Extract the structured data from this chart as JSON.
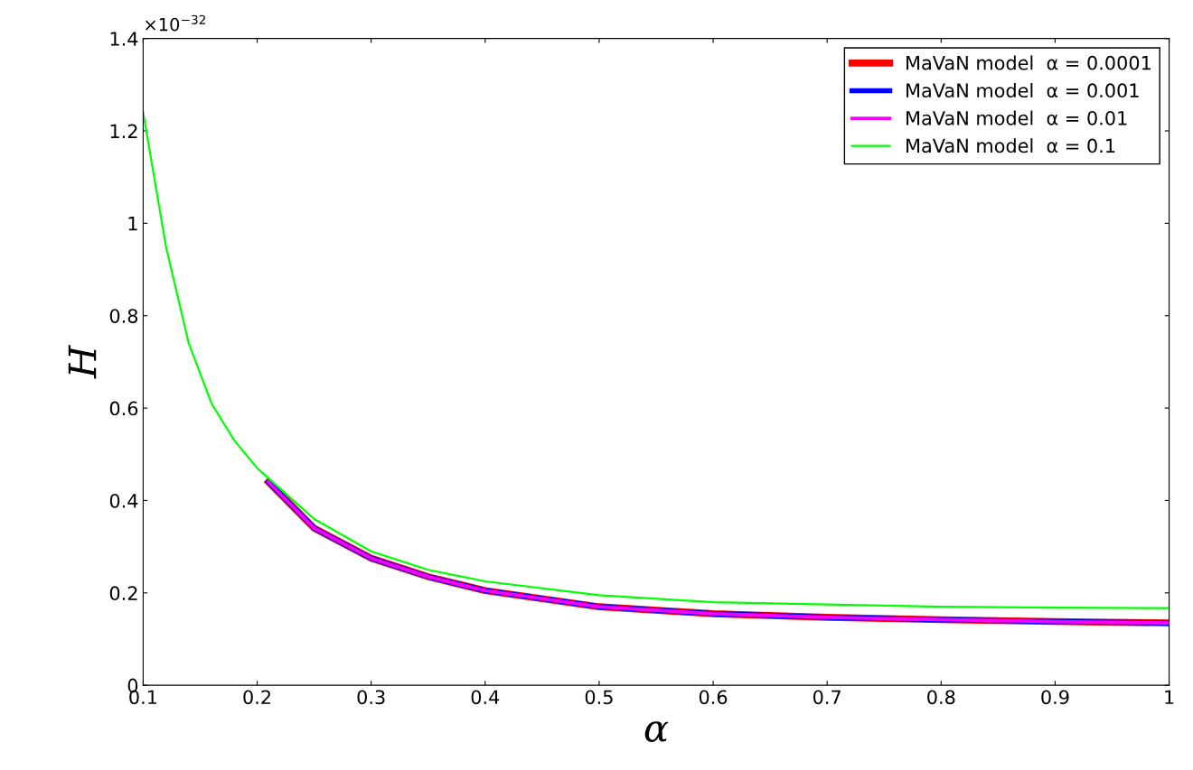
{
  "chart_data": {
    "type": "line",
    "xlabel": "α",
    "ylabel": "H",
    "annotations": [
      "×10$^{−32}$"
    ],
    "xlim": [
      0.1,
      1
    ],
    "ylim": [
      0,
      1.4
    ],
    "xticks": [
      0.1,
      0.2,
      0.3,
      0.4,
      0.5,
      0.6,
      0.7,
      0.8,
      0.9,
      1
    ],
    "yticks": [
      0,
      0.2,
      0.4,
      0.6,
      0.8,
      1,
      1.2,
      1.4
    ],
    "grid": false,
    "legend": "top right",
    "marker": "none",
    "line_style": "solid",
    "series": [
      {
        "name": "MaVaN model  α = 0.0001",
        "color": "#ff0000",
        "x": [
          0.21,
          0.25,
          0.3,
          0.35,
          0.4,
          0.5,
          0.6,
          0.7,
          0.8,
          0.9,
          1.0
        ],
        "values": [
          0.44,
          0.34,
          0.275,
          0.235,
          0.205,
          0.17,
          0.155,
          0.147,
          0.142,
          0.138,
          0.135
        ]
      },
      {
        "name": "MaVaN model  α = 0.001",
        "color": "#0000ff",
        "x": [
          0.21,
          0.25,
          0.3,
          0.35,
          0.4,
          0.5,
          0.6,
          0.7,
          0.8,
          0.9,
          1.0
        ],
        "values": [
          0.44,
          0.34,
          0.275,
          0.235,
          0.205,
          0.17,
          0.155,
          0.147,
          0.142,
          0.138,
          0.135
        ]
      },
      {
        "name": "MaVaN model  α = 0.01",
        "color": "#ff00ff",
        "x": [
          0.21,
          0.25,
          0.3,
          0.35,
          0.4,
          0.5,
          0.6,
          0.7,
          0.8,
          0.9,
          1.0
        ],
        "values": [
          0.44,
          0.34,
          0.275,
          0.235,
          0.205,
          0.17,
          0.155,
          0.147,
          0.142,
          0.138,
          0.135
        ]
      },
      {
        "name": "MaVaN model  α = 0.1",
        "color": "#00ff00",
        "x": [
          0.1,
          0.12,
          0.14,
          0.16,
          0.18,
          0.2,
          0.25,
          0.3,
          0.35,
          0.4,
          0.5,
          0.6,
          0.7,
          0.8,
          0.9,
          1.0
        ],
        "values": [
          1.24,
          0.95,
          0.74,
          0.61,
          0.53,
          0.47,
          0.36,
          0.29,
          0.25,
          0.225,
          0.195,
          0.18,
          0.175,
          0.17,
          0.168,
          0.167
        ]
      }
    ]
  }
}
